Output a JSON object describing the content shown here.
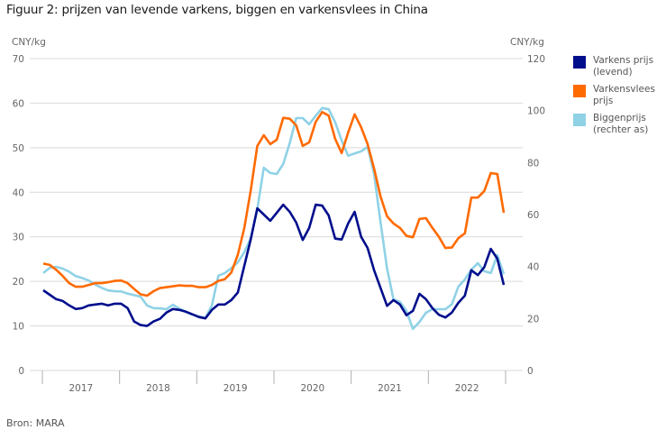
{
  "title": "Figuur 2: prijzen van levende varkens, biggen en varkensvlees in China",
  "source": "Bron: MARA",
  "legend": [
    {
      "label": "Varkens prijs\n(levend)",
      "color": "#000E8C"
    },
    {
      "label": "Varkensvlees\nprijs",
      "color": "#FF6A00"
    },
    {
      "label": "Biggenprijs\n(rechter as)",
      "color": "#8FD2E6"
    }
  ],
  "chart_data": {
    "type": "line",
    "title": "Figuur 2: prijzen van levende varkens, biggen en varkensvlees in China",
    "xlabel": "",
    "ylabel": "CNY/kg",
    "y2label": "CNY/kg",
    "ylim": [
      0,
      70
    ],
    "y2lim": [
      0,
      120
    ],
    "yticks": [
      0,
      10,
      20,
      30,
      40,
      50,
      60,
      70
    ],
    "y2ticks": [
      0,
      20,
      40,
      60,
      80,
      100,
      120
    ],
    "x_categories": [
      "2017",
      "2018",
      "2019",
      "2020",
      "2021",
      "2022"
    ],
    "x_frequency": "monthly",
    "x_start": "2017-01",
    "x_end": "2022-12",
    "grid": true,
    "legend_position": "right",
    "series": [
      {
        "name": "Varkens prijs (levend)",
        "axis": "left",
        "color": "#000E8C",
        "values": [
          18.0,
          17.0,
          16.0,
          15.6,
          14.6,
          13.8,
          14.0,
          14.6,
          14.8,
          15.0,
          14.6,
          15.0,
          15.0,
          14.0,
          11.0,
          10.2,
          10.0,
          11.0,
          11.6,
          13.0,
          13.8,
          13.6,
          13.2,
          12.6,
          12.0,
          11.7,
          13.6,
          14.8,
          14.8,
          15.8,
          17.5,
          23.5,
          29.5,
          36.4,
          35.0,
          33.6,
          35.4,
          37.2,
          35.6,
          33.2,
          29.3,
          32.0,
          37.2,
          37.0,
          34.8,
          29.6,
          29.4,
          33.0,
          35.6,
          30.0,
          27.5,
          22.5,
          18.5,
          14.5,
          15.8,
          14.8,
          12.4,
          13.4,
          17.2,
          16.0,
          14.0,
          12.5,
          11.9,
          13.0,
          15.2,
          16.8,
          22.5,
          21.4,
          23.2,
          27.3,
          25.1,
          19.2
        ]
      },
      {
        "name": "Varkensvlees prijs",
        "axis": "left",
        "color": "#FF6A00",
        "values": [
          24.0,
          23.7,
          22.6,
          21.2,
          19.6,
          18.8,
          18.8,
          19.2,
          19.6,
          19.6,
          19.8,
          20.1,
          20.2,
          19.6,
          18.3,
          17.1,
          16.8,
          17.8,
          18.5,
          18.7,
          18.9,
          19.1,
          19.0,
          19.0,
          18.7,
          18.7,
          19.2,
          20.1,
          20.5,
          22.0,
          26.0,
          32.0,
          40.5,
          50.4,
          52.8,
          50.8,
          51.8,
          56.7,
          56.5,
          55.0,
          50.4,
          51.2,
          55.8,
          58.0,
          57.2,
          52.0,
          48.8,
          53.4,
          57.5,
          54.6,
          50.8,
          45.3,
          39.0,
          34.6,
          33.0,
          32.0,
          30.2,
          29.9,
          34.0,
          34.2,
          32.0,
          30.0,
          27.5,
          27.6,
          29.7,
          30.8,
          38.8,
          38.8,
          40.3,
          44.3,
          44.1,
          35.4
        ]
      },
      {
        "name": "Biggenprijs (rechter as)",
        "axis": "right",
        "color": "#8FD2E6",
        "values": [
          37.5,
          39.5,
          39.9,
          39.2,
          38.0,
          36.3,
          35.6,
          34.6,
          33.1,
          31.8,
          30.8,
          30.5,
          30.4,
          29.6,
          29.0,
          28.4,
          25.0,
          24.0,
          23.9,
          23.6,
          25.3,
          23.8,
          22.5,
          21.5,
          20.8,
          20.2,
          25.0,
          36.5,
          37.5,
          39.4,
          41.6,
          45.5,
          51.0,
          62.0,
          78.0,
          76.0,
          75.6,
          79.5,
          87.5,
          97.1,
          97.1,
          94.7,
          98.0,
          101.0,
          100.5,
          95.5,
          88.5,
          82.6,
          83.5,
          84.3,
          86.0,
          75.6,
          56.9,
          39.2,
          27.4,
          26.4,
          22.9,
          16.0,
          18.7,
          22.2,
          23.6,
          23.6,
          23.6,
          25.5,
          32.3,
          35.0,
          38.8,
          41.3,
          38.2,
          37.5,
          44.4,
          37.1
        ]
      }
    ]
  }
}
